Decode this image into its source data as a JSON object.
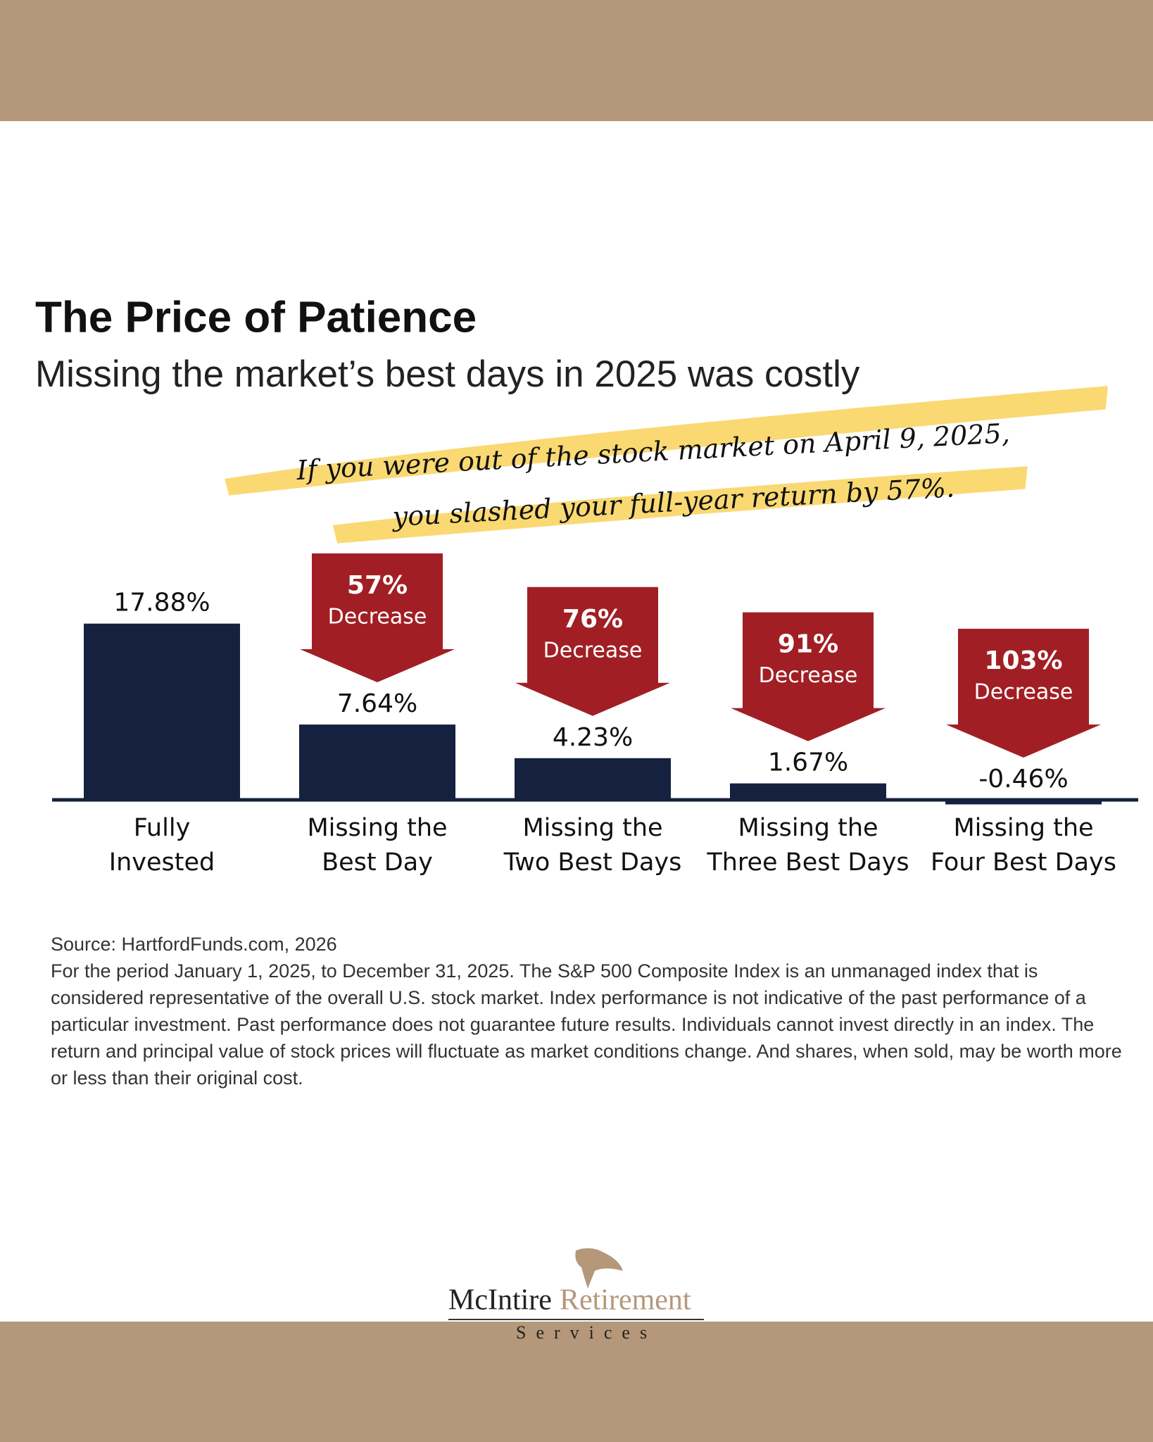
{
  "chart_data": {
    "type": "bar",
    "title": "The Price of Patience",
    "subtitle": "Missing the market’s best days in 2025 was costly",
    "annotation": [
      "If you were out of the stock market on April 9, 2025,",
      "you slashed your full-year return by 57%."
    ],
    "categories": [
      "Fully\nInvested",
      "Missing the\nBest Day",
      "Missing the\nTwo Best Days",
      "Missing the\nThree Best Days",
      "Missing the\nFour Best Days"
    ],
    "values": [
      17.88,
      7.64,
      4.23,
      1.67,
      -0.46
    ],
    "value_labels": [
      "17.88%",
      "7.64%",
      "4.23%",
      "1.67%",
      "-0.46%"
    ],
    "decreases": [
      null,
      {
        "value": 57,
        "label": "57%"
      },
      {
        "value": 76,
        "label": "76%"
      },
      {
        "value": 91,
        "label": "91%"
      },
      {
        "value": 103,
        "label": "103%"
      }
    ],
    "decrease_text": "Decrease",
    "color": "#16213f",
    "arrow_color": "#a11f24",
    "ylim": [
      -1,
      20
    ]
  },
  "footer": {
    "source": "Source: HartfordFunds.com, 2026",
    "disclaimer": "For the period January 1, 2025, to December 31, 2025. The S&P 500 Composite Index is an unmanaged index that is considered representative of the overall U.S. stock market. Index performance is not indicative of the past performance of a particular investment. Past performance does not guarantee future results. Individuals cannot invest directly in an index. The return and principal value of stock prices will fluctuate as market conditions change. And shares, when sold, may be worth more or less than their original cost."
  },
  "logo": {
    "name": "McIntire",
    "name2": "Retirement",
    "tagline": "Services"
  }
}
